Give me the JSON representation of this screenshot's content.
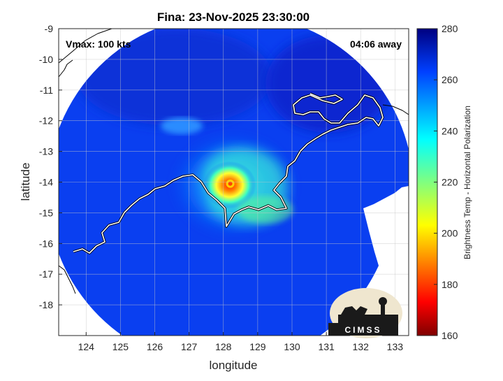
{
  "chart_data": {
    "type": "heatmap",
    "title": "Fina: 23-Nov-2025 23:30:00",
    "xlabel": "longitude",
    "ylabel": "latitude",
    "xlim": [
      123.2,
      133.4
    ],
    "ylim": [
      -19.0,
      -9.0
    ],
    "x_ticks": [
      "124",
      "125",
      "126",
      "127",
      "128",
      "129",
      "130",
      "131",
      "132",
      "133"
    ],
    "y_ticks": [
      "-9",
      "-10",
      "-11",
      "-12",
      "-13",
      "-14",
      "-15",
      "-16",
      "-17",
      "-18"
    ],
    "grid": true,
    "annotations": {
      "vmax": "Vmax: 100 kts",
      "time_away": "04:06 away"
    },
    "colorbar": {
      "label": "Brightness Temp - Horizontal Polarization",
      "min": 160,
      "max": 280,
      "ticks": [
        "160",
        "180",
        "200",
        "220",
        "240",
        "260",
        "280"
      ]
    },
    "storm_center": {
      "lon": 128.2,
      "lat": -14.05
    },
    "swath_center": {
      "lon": 128.0,
      "lat": -14.3
    },
    "logo_text": "CIMSS"
  }
}
